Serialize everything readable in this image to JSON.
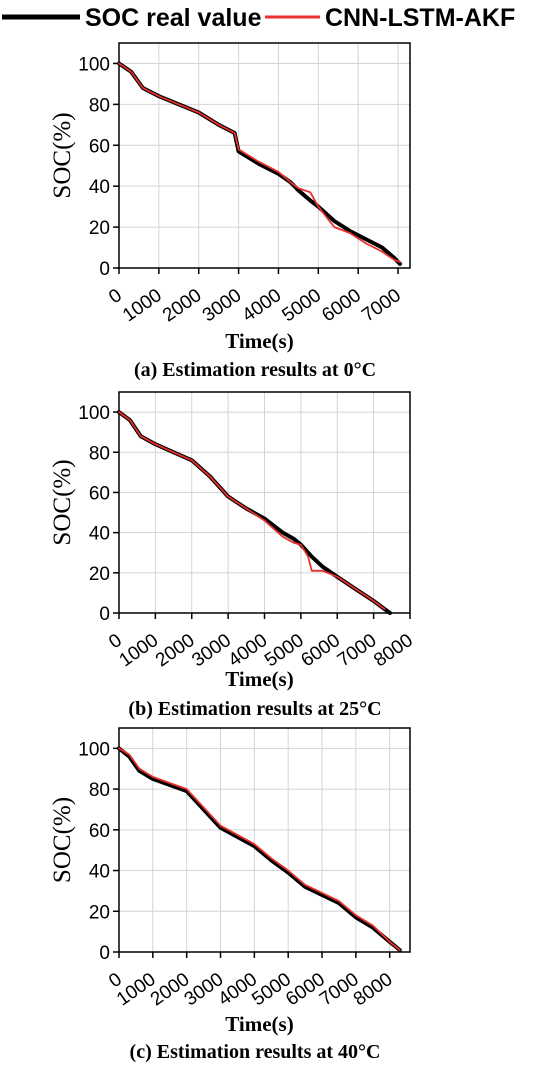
{
  "legend": {
    "items": [
      {
        "label": "SOC real value",
        "color": "#000000"
      },
      {
        "label": "CNN-LSTM-AKF",
        "color": "#e8302c"
      }
    ]
  },
  "chart_data": [
    {
      "type": "line",
      "caption": "(a) Estimation results at 0°C",
      "xlabel": "Time(s)",
      "ylabel": "SOC(%)",
      "xlim": [
        0,
        7300
      ],
      "ylim": [
        0,
        110
      ],
      "xticks": [
        0,
        1000,
        2000,
        3000,
        4000,
        5000,
        6000,
        7000
      ],
      "yticks": [
        0,
        20,
        40,
        60,
        80,
        100
      ],
      "grid": true,
      "series": [
        {
          "name": "SOC real value",
          "color": "#000000",
          "x": [
            0,
            300,
            600,
            1000,
            1500,
            2000,
            2500,
            2900,
            3000,
            3500,
            4000,
            4300,
            4500,
            4800,
            5000,
            5400,
            5800,
            6200,
            6600,
            6900,
            7050
          ],
          "y": [
            100,
            96,
            88,
            84,
            80,
            76,
            70,
            66,
            57,
            51,
            46,
            42,
            38,
            33,
            30,
            23,
            18,
            14,
            10,
            5,
            2
          ]
        },
        {
          "name": "CNN-LSTM-AKF",
          "color": "#e8302c",
          "x": [
            0,
            300,
            600,
            1000,
            1500,
            2000,
            2500,
            2900,
            3000,
            3500,
            4000,
            4300,
            4500,
            4800,
            5000,
            5200,
            5400,
            5800,
            6200,
            6600,
            6900,
            7050
          ],
          "y": [
            100,
            96,
            88,
            84,
            80,
            76,
            70,
            66,
            58,
            52,
            47,
            42,
            39,
            37,
            30,
            25,
            20,
            17,
            12,
            8,
            4,
            3
          ]
        }
      ]
    },
    {
      "type": "line",
      "caption": "(b) Estimation results at 25°C",
      "xlabel": "Time(s)",
      "ylabel": "SOC(%)",
      "xlim": [
        0,
        8000
      ],
      "ylim": [
        0,
        110
      ],
      "xticks": [
        0,
        1000,
        2000,
        3000,
        4000,
        5000,
        6000,
        7000,
        8000
      ],
      "yticks": [
        0,
        20,
        40,
        60,
        80,
        100
      ],
      "grid": true,
      "series": [
        {
          "name": "SOC real value",
          "color": "#000000",
          "x": [
            0,
            300,
            600,
            1000,
            1500,
            2000,
            2500,
            3000,
            3500,
            4000,
            4500,
            4800,
            5000,
            5300,
            5600,
            6000,
            6500,
            7000,
            7300,
            7450
          ],
          "y": [
            100,
            96,
            88,
            84,
            80,
            76,
            68,
            58,
            52,
            47,
            40,
            37,
            34,
            28,
            23,
            18,
            12,
            6,
            2,
            0
          ]
        },
        {
          "name": "CNN-LSTM-AKF",
          "color": "#e8302c",
          "x": [
            0,
            300,
            600,
            1000,
            1500,
            2000,
            2500,
            3000,
            3500,
            4000,
            4500,
            4800,
            5000,
            5200,
            5300,
            5600,
            6000,
            6500,
            7000,
            7300
          ],
          "y": [
            100,
            96,
            88,
            84,
            80,
            76,
            68,
            58,
            52,
            46,
            38,
            35,
            34,
            28,
            21,
            21,
            18,
            12,
            6,
            2
          ]
        }
      ]
    },
    {
      "type": "line",
      "caption": "(c) Estimation results at 40°C",
      "xlabel": "Time(s)",
      "ylabel": "SOC(%)",
      "xlim": [
        0,
        8600
      ],
      "ylim": [
        0,
        110
      ],
      "xticks": [
        0,
        1000,
        2000,
        3000,
        4000,
        5000,
        6000,
        7000,
        8000
      ],
      "yticks": [
        0,
        20,
        40,
        60,
        80,
        100
      ],
      "grid": true,
      "series": [
        {
          "name": "SOC real value",
          "color": "#000000",
          "x": [
            0,
            300,
            600,
            1000,
            2000,
            3000,
            4000,
            4500,
            5000,
            5500,
            6000,
            6500,
            7000,
            7500,
            8000,
            8300
          ],
          "y": [
            100,
            96,
            89,
            85,
            79,
            61,
            52,
            45,
            39,
            32,
            28,
            24,
            17,
            12,
            5,
            1
          ]
        },
        {
          "name": "CNN-LSTM-AKF",
          "color": "#e8302c",
          "x": [
            0,
            300,
            600,
            1000,
            2000,
            3000,
            4000,
            4500,
            5000,
            5500,
            6000,
            6500,
            7000,
            7500,
            8000,
            8300
          ],
          "y": [
            100,
            97,
            90,
            86,
            80,
            62,
            53,
            46,
            40,
            33,
            29,
            25,
            18,
            13,
            5,
            1
          ]
        }
      ]
    }
  ]
}
